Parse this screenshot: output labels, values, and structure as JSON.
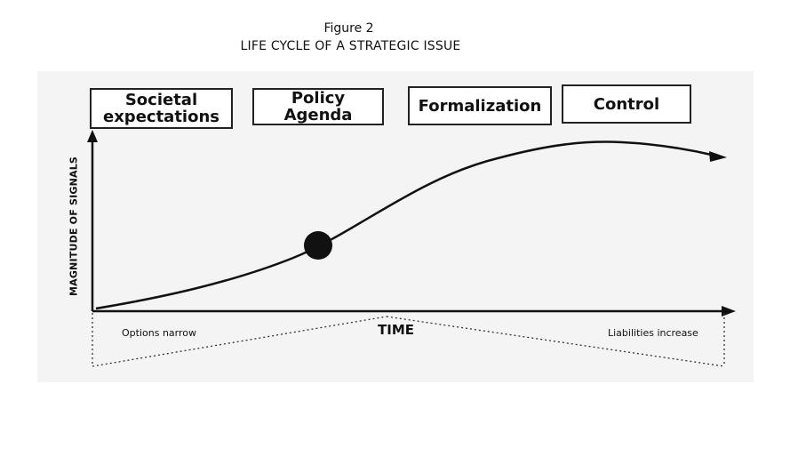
{
  "figure": {
    "number": "Figure  2",
    "title": "LIFE CYCLE OF A STRATEGIC ISSUE"
  },
  "stages": [
    {
      "label": "Societal\nexpectations"
    },
    {
      "label": "Policy\nAgenda"
    },
    {
      "label": "Formalization"
    },
    {
      "label": "Control"
    }
  ],
  "axes": {
    "y_label": "MAGNITUDE OF SIGNALS",
    "x_label": "TIME"
  },
  "notes": {
    "left": "Options narrow",
    "right": "Liabilities increase"
  }
}
